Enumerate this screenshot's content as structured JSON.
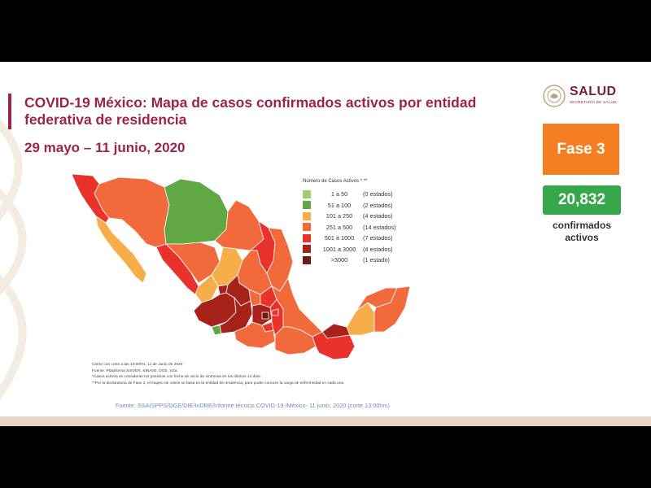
{
  "slide": {
    "title": "COVID-19 México: Mapa de casos confirmados activos por entidad federativa de residencia",
    "subtitle": "29 mayo – 11 junio, 2020",
    "logo": {
      "name": "SALUD",
      "sub": "SECRETARÍA DE SALUD"
    },
    "phase_label": "Fase 3",
    "active_count": "20,832",
    "active_label_line1": "confirmados",
    "active_label_line2": "activos",
    "legend": {
      "title": "Número de Casos Activos * **",
      "items": [
        {
          "range": "1 a 50",
          "count": "(0 estados)",
          "color": "#9dce6b"
        },
        {
          "range": "51 a 100",
          "count": "(2 estados)",
          "color": "#5fa844"
        },
        {
          "range": "101 a 250",
          "count": "(4 estados)",
          "color": "#f7ae4a"
        },
        {
          "range": "251 a 500",
          "count": "(14 estados)",
          "color": "#f26a3b"
        },
        {
          "range": "501 a 1000",
          "count": "(7 estados)",
          "color": "#e8322b"
        },
        {
          "range": "1001 a 3000",
          "count": "(4 estados)",
          "color": "#a8221c"
        },
        {
          "range": ">3000",
          "count": "(1 estado)",
          "color": "#6b1a14"
        }
      ]
    },
    "notes": [
      "Cierre con corte a las 13:00hrs, 11 de Junio de 2020",
      "Fuente: Plataforma SISVER, SINAVE, DGE, SSa.",
      "*Casos activos se consideran los positivos con fecha de inicio de síntomas en los últimos 14 días.",
      "**Por la declaratoria de Fase 3, el mapeo de casos se basa en la entidad de residencia, para poder conocer la carga de enfermedad en cada una."
    ],
    "source": "Fuente: SSA(SPPS/DGE/DIE/InDRE/Informe técnico.COVID-19 /México- 11 junio, 2020 (corte 13:00hrs)",
    "colors": {
      "brand": "#9d2449",
      "phase": "#f47e21",
      "count": "#36a74a"
    }
  }
}
